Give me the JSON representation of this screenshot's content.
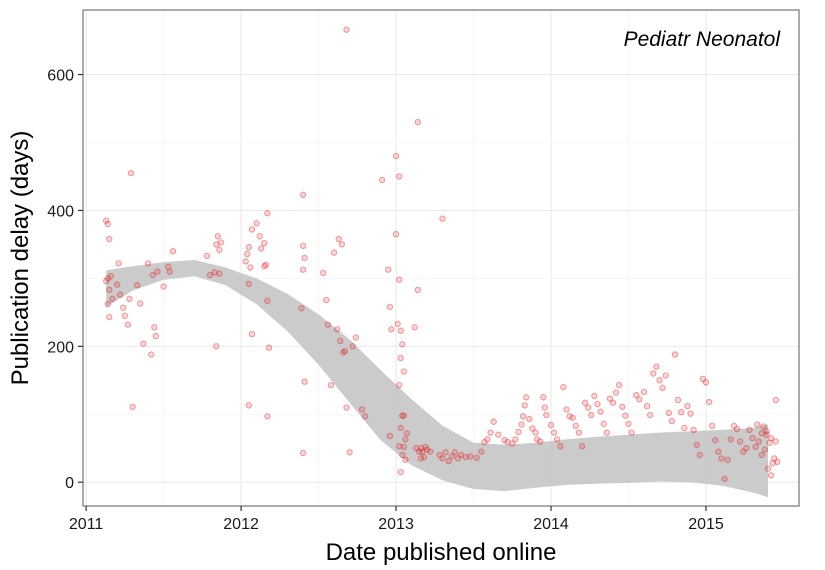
{
  "chart_data": {
    "type": "scatter",
    "title": "Pediatr Neonatol",
    "xlabel": "Date published online",
    "ylabel": "Publication delay (days)",
    "xlim": [
      2010.98,
      2015.6
    ],
    "ylim": [
      -35,
      695
    ],
    "x_ticks": [
      2011,
      2012,
      2013,
      2014,
      2015
    ],
    "x_tick_labels": [
      "2011",
      "2012",
      "2013",
      "2014",
      "2015"
    ],
    "y_ticks": [
      0,
      200,
      400,
      600
    ],
    "y_tick_labels": [
      "0",
      "200",
      "400",
      "600"
    ],
    "grid": true,
    "legend": "none",
    "colors": {
      "points": "#e41a1c",
      "band": "#c8c8c8",
      "frame": "#808080",
      "grid": "#ebebeb"
    },
    "smooth_band": {
      "x": [
        2011.13,
        2011.3,
        2011.5,
        2011.7,
        2011.9,
        2012.1,
        2012.3,
        2012.5,
        2012.7,
        2012.9,
        2013.1,
        2013.3,
        2013.5,
        2013.7,
        2013.9,
        2014.1,
        2014.3,
        2014.5,
        2014.7,
        2014.9,
        2015.1,
        2015.3,
        2015.4
      ],
      "lower": [
        258,
        282,
        298,
        303,
        290,
        262,
        222,
        173,
        117,
        62,
        25,
        3,
        -10,
        -13,
        -8,
        -4,
        -2,
        -1,
        1,
        0,
        -5,
        -15,
        -22
      ],
      "upper": [
        312,
        318,
        324,
        327,
        316,
        300,
        277,
        247,
        210,
        165,
        122,
        83,
        58,
        55,
        58,
        63,
        67,
        70,
        73,
        75,
        77,
        80,
        85
      ]
    },
    "points": [
      [
        2011.13,
        385
      ],
      [
        2011.14,
        380
      ],
      [
        2011.15,
        358
      ],
      [
        2011.13,
        296
      ],
      [
        2011.14,
        300
      ],
      [
        2011.16,
        303
      ],
      [
        2011.15,
        283
      ],
      [
        2011.14,
        262
      ],
      [
        2011.15,
        243
      ],
      [
        2011.17,
        270
      ],
      [
        2011.2,
        291
      ],
      [
        2011.21,
        322
      ],
      [
        2011.22,
        276
      ],
      [
        2011.24,
        257
      ],
      [
        2011.25,
        245
      ],
      [
        2011.27,
        232
      ],
      [
        2011.28,
        270
      ],
      [
        2011.29,
        455
      ],
      [
        2011.3,
        111
      ],
      [
        2011.33,
        290
      ],
      [
        2011.35,
        263
      ],
      [
        2011.37,
        204
      ],
      [
        2011.4,
        322
      ],
      [
        2011.42,
        188
      ],
      [
        2011.43,
        305
      ],
      [
        2011.44,
        228
      ],
      [
        2011.45,
        215
      ],
      [
        2011.46,
        310
      ],
      [
        2011.5,
        288
      ],
      [
        2011.53,
        317
      ],
      [
        2011.54,
        310
      ],
      [
        2011.56,
        340
      ],
      [
        2011.78,
        333
      ],
      [
        2011.8,
        305
      ],
      [
        2011.83,
        309
      ],
      [
        2011.84,
        350
      ],
      [
        2011.85,
        362
      ],
      [
        2011.86,
        342
      ],
      [
        2011.87,
        353
      ],
      [
        2011.84,
        200
      ],
      [
        2011.86,
        307
      ],
      [
        2012.03,
        325
      ],
      [
        2012.04,
        336
      ],
      [
        2012.05,
        346
      ],
      [
        2012.07,
        372
      ],
      [
        2012.1,
        381
      ],
      [
        2012.12,
        362
      ],
      [
        2012.13,
        344
      ],
      [
        2012.06,
        316
      ],
      [
        2012.05,
        292
      ],
      [
        2012.07,
        218
      ],
      [
        2012.05,
        113
      ],
      [
        2012.15,
        318
      ],
      [
        2012.16,
        320
      ],
      [
        2012.17,
        396
      ],
      [
        2012.18,
        198
      ],
      [
        2012.17,
        97
      ],
      [
        2012.15,
        352
      ],
      [
        2012.17,
        267
      ],
      [
        2012.4,
        423
      ],
      [
        2012.4,
        348
      ],
      [
        2012.41,
        330
      ],
      [
        2012.39,
        256
      ],
      [
        2012.4,
        313
      ],
      [
        2012.41,
        148
      ],
      [
        2012.4,
        43
      ],
      [
        2012.53,
        308
      ],
      [
        2012.55,
        268
      ],
      [
        2012.56,
        232
      ],
      [
        2012.58,
        143
      ],
      [
        2012.6,
        338
      ],
      [
        2012.63,
        358
      ],
      [
        2012.65,
        350
      ],
      [
        2012.62,
        225
      ],
      [
        2012.64,
        208
      ],
      [
        2012.66,
        191
      ],
      [
        2012.67,
        193
      ],
      [
        2012.68,
        110
      ],
      [
        2012.7,
        44
      ],
      [
        2012.72,
        200
      ],
      [
        2012.74,
        213
      ],
      [
        2012.78,
        107
      ],
      [
        2012.8,
        97
      ],
      [
        2012.68,
        666
      ],
      [
        2012.91,
        445
      ],
      [
        2012.95,
        313
      ],
      [
        2012.96,
        258
      ],
      [
        2012.97,
        225
      ],
      [
        2012.96,
        68
      ],
      [
        2013.0,
        480
      ],
      [
        2013.0,
        365
      ],
      [
        2013.02,
        450
      ],
      [
        2013.02,
        298
      ],
      [
        2013.01,
        233
      ],
      [
        2013.03,
        223
      ],
      [
        2013.04,
        203
      ],
      [
        2013.03,
        183
      ],
      [
        2013.05,
        163
      ],
      [
        2013.02,
        143
      ],
      [
        2013.04,
        98
      ],
      [
        2013.03,
        80
      ],
      [
        2013.05,
        98
      ],
      [
        2013.06,
        63
      ],
      [
        2013.05,
        52
      ],
      [
        2013.07,
        72
      ],
      [
        2013.02,
        53
      ],
      [
        2013.03,
        15
      ],
      [
        2013.04,
        40
      ],
      [
        2013.06,
        33
      ],
      [
        2013.14,
        530
      ],
      [
        2013.14,
        283
      ],
      [
        2013.12,
        228
      ],
      [
        2013.16,
        50
      ],
      [
        2013.17,
        45
      ],
      [
        2013.18,
        37
      ],
      [
        2013.19,
        52
      ],
      [
        2013.2,
        48
      ],
      [
        2013.15,
        45
      ],
      [
        2013.13,
        50
      ],
      [
        2013.16,
        35
      ],
      [
        2013.22,
        45
      ],
      [
        2013.3,
        388
      ],
      [
        2013.28,
        40
      ],
      [
        2013.3,
        35
      ],
      [
        2013.32,
        44
      ],
      [
        2013.34,
        31
      ],
      [
        2013.36,
        38
      ],
      [
        2013.38,
        44
      ],
      [
        2013.4,
        35
      ],
      [
        2013.42,
        40
      ],
      [
        2013.45,
        37
      ],
      [
        2013.48,
        38
      ],
      [
        2013.52,
        36
      ],
      [
        2013.55,
        45
      ],
      [
        2013.57,
        59
      ],
      [
        2013.59,
        63
      ],
      [
        2013.61,
        73
      ],
      [
        2013.63,
        89
      ],
      [
        2013.66,
        70
      ],
      [
        2013.7,
        62
      ],
      [
        2013.72,
        59
      ],
      [
        2013.75,
        57
      ],
      [
        2013.77,
        63
      ],
      [
        2013.79,
        74
      ],
      [
        2013.81,
        85
      ],
      [
        2013.82,
        97
      ],
      [
        2013.83,
        113
      ],
      [
        2013.84,
        125
      ],
      [
        2013.86,
        93
      ],
      [
        2013.88,
        79
      ],
      [
        2013.9,
        73
      ],
      [
        2013.91,
        63
      ],
      [
        2013.93,
        60
      ],
      [
        2013.95,
        125
      ],
      [
        2013.96,
        110
      ],
      [
        2013.97,
        99
      ],
      [
        2014.0,
        84
      ],
      [
        2014.02,
        73
      ],
      [
        2014.04,
        63
      ],
      [
        2014.06,
        53
      ],
      [
        2014.08,
        140
      ],
      [
        2014.1,
        107
      ],
      [
        2014.12,
        97
      ],
      [
        2014.14,
        95
      ],
      [
        2014.16,
        83
      ],
      [
        2014.18,
        73
      ],
      [
        2014.2,
        53
      ],
      [
        2014.22,
        117
      ],
      [
        2014.24,
        110
      ],
      [
        2014.26,
        99
      ],
      [
        2014.28,
        127
      ],
      [
        2014.3,
        115
      ],
      [
        2014.32,
        104
      ],
      [
        2014.34,
        86
      ],
      [
        2014.36,
        73
      ],
      [
        2014.38,
        123
      ],
      [
        2014.4,
        117
      ],
      [
        2014.42,
        132
      ],
      [
        2014.44,
        143
      ],
      [
        2014.46,
        111
      ],
      [
        2014.48,
        98
      ],
      [
        2014.5,
        86
      ],
      [
        2014.52,
        73
      ],
      [
        2014.55,
        128
      ],
      [
        2014.57,
        122
      ],
      [
        2014.6,
        133
      ],
      [
        2014.62,
        112
      ],
      [
        2014.64,
        99
      ],
      [
        2014.66,
        160
      ],
      [
        2014.68,
        170
      ],
      [
        2014.7,
        150
      ],
      [
        2014.72,
        139
      ],
      [
        2014.74,
        157
      ],
      [
        2014.76,
        102
      ],
      [
        2014.78,
        90
      ],
      [
        2014.8,
        188
      ],
      [
        2014.82,
        121
      ],
      [
        2014.84,
        103
      ],
      [
        2014.86,
        80
      ],
      [
        2014.88,
        112
      ],
      [
        2014.9,
        101
      ],
      [
        2014.92,
        77
      ],
      [
        2014.94,
        55
      ],
      [
        2014.96,
        40
      ],
      [
        2014.98,
        152
      ],
      [
        2015.0,
        147
      ],
      [
        2015.02,
        118
      ],
      [
        2015.04,
        83
      ],
      [
        2015.06,
        62
      ],
      [
        2015.08,
        45
      ],
      [
        2015.1,
        35
      ],
      [
        2015.12,
        5
      ],
      [
        2015.14,
        33
      ],
      [
        2015.16,
        63
      ],
      [
        2015.18,
        83
      ],
      [
        2015.2,
        78
      ],
      [
        2015.22,
        60
      ],
      [
        2015.24,
        45
      ],
      [
        2015.26,
        50
      ],
      [
        2015.28,
        77
      ],
      [
        2015.3,
        65
      ],
      [
        2015.32,
        52
      ],
      [
        2015.34,
        60
      ],
      [
        2015.36,
        72
      ],
      [
        2015.37,
        82
      ],
      [
        2015.38,
        48
      ],
      [
        2015.39,
        70
      ],
      [
        2015.4,
        20
      ],
      [
        2015.41,
        58
      ],
      [
        2015.42,
        10
      ],
      [
        2015.43,
        28
      ],
      [
        2015.44,
        35
      ],
      [
        2015.45,
        121
      ],
      [
        2015.46,
        30
      ],
      [
        2015.45,
        60
      ],
      [
        2015.42,
        65
      ],
      [
        2015.39,
        75
      ],
      [
        2015.36,
        40
      ],
      [
        2015.33,
        85
      ]
    ]
  }
}
